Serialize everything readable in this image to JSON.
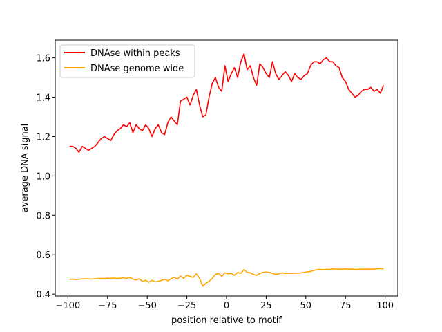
{
  "chart_data": {
    "type": "line",
    "xlabel": "position relative to motif",
    "ylabel": "average DNA signal",
    "xlim": [
      -108,
      108
    ],
    "ylim": [
      0.39,
      1.69
    ],
    "xticks": [
      -100,
      -75,
      -50,
      -25,
      0,
      25,
      50,
      75,
      100
    ],
    "yticks": [
      0.4,
      0.6,
      0.8,
      1.0,
      1.2,
      1.4,
      1.6
    ],
    "xtick_labels": [
      "−100",
      "−75",
      "−50",
      "−25",
      "0",
      "25",
      "50",
      "75",
      "100"
    ],
    "ytick_labels": [
      "0.4",
      "0.6",
      "0.8",
      "1.0",
      "1.2",
      "1.4",
      "1.6"
    ],
    "grid": false,
    "legend_position": "top-left",
    "series": [
      {
        "name": "DNAse within peaks",
        "color": "#ff0000",
        "x": [
          -99,
          -97,
          -95,
          -93,
          -91,
          -89,
          -87,
          -85,
          -83,
          -81,
          -79,
          -77,
          -75,
          -73,
          -71,
          -69,
          -67,
          -65,
          -63,
          -61,
          -59,
          -57,
          -55,
          -53,
          -51,
          -49,
          -47,
          -45,
          -43,
          -41,
          -39,
          -37,
          -35,
          -33,
          -31,
          -29,
          -27,
          -25,
          -23,
          -21,
          -19,
          -17,
          -15,
          -13,
          -11,
          -9,
          -7,
          -5,
          -3,
          -1,
          1,
          3,
          5,
          7,
          9,
          11,
          13,
          15,
          17,
          19,
          21,
          23,
          25,
          27,
          29,
          31,
          33,
          35,
          37,
          39,
          41,
          43,
          45,
          47,
          49,
          51,
          53,
          55,
          57,
          59,
          61,
          63,
          65,
          67,
          69,
          71,
          73,
          75,
          77,
          79,
          81,
          83,
          85,
          87,
          89,
          91,
          93,
          95,
          97,
          99
        ],
        "values": [
          1.15,
          1.15,
          1.14,
          1.12,
          1.15,
          1.14,
          1.13,
          1.14,
          1.15,
          1.17,
          1.19,
          1.2,
          1.19,
          1.18,
          1.21,
          1.23,
          1.24,
          1.26,
          1.25,
          1.27,
          1.22,
          1.26,
          1.24,
          1.23,
          1.26,
          1.24,
          1.2,
          1.24,
          1.26,
          1.22,
          1.21,
          1.27,
          1.3,
          1.28,
          1.26,
          1.38,
          1.39,
          1.4,
          1.36,
          1.41,
          1.44,
          1.36,
          1.3,
          1.31,
          1.4,
          1.47,
          1.5,
          1.45,
          1.43,
          1.56,
          1.48,
          1.52,
          1.55,
          1.5,
          1.58,
          1.62,
          1.54,
          1.56,
          1.5,
          1.46,
          1.57,
          1.55,
          1.52,
          1.5,
          1.58,
          1.52,
          1.49,
          1.51,
          1.53,
          1.51,
          1.48,
          1.52,
          1.5,
          1.49,
          1.51,
          1.52,
          1.56,
          1.58,
          1.58,
          1.57,
          1.59,
          1.6,
          1.58,
          1.58,
          1.56,
          1.55,
          1.5,
          1.48,
          1.44,
          1.42,
          1.4,
          1.41,
          1.43,
          1.44,
          1.44,
          1.45,
          1.43,
          1.44,
          1.42,
          1.46
        ]
      },
      {
        "name": "DNAse genome wide",
        "color": "#ffa500",
        "x": [
          -99,
          -97,
          -95,
          -93,
          -91,
          -89,
          -87,
          -85,
          -83,
          -81,
          -79,
          -77,
          -75,
          -73,
          -71,
          -69,
          -67,
          -65,
          -63,
          -61,
          -59,
          -57,
          -55,
          -53,
          -51,
          -49,
          -47,
          -45,
          -43,
          -41,
          -39,
          -37,
          -35,
          -33,
          -31,
          -29,
          -27,
          -25,
          -23,
          -21,
          -19,
          -17,
          -15,
          -13,
          -11,
          -9,
          -7,
          -5,
          -3,
          -1,
          1,
          3,
          5,
          7,
          9,
          11,
          13,
          15,
          17,
          19,
          21,
          23,
          25,
          27,
          29,
          31,
          33,
          35,
          37,
          39,
          41,
          43,
          45,
          47,
          49,
          51,
          53,
          55,
          57,
          59,
          61,
          63,
          65,
          67,
          69,
          71,
          73,
          75,
          77,
          79,
          81,
          83,
          85,
          87,
          89,
          91,
          93,
          95,
          97,
          99
        ],
        "values": [
          0.475,
          0.476,
          0.474,
          0.475,
          0.477,
          0.478,
          0.477,
          0.476,
          0.478,
          0.479,
          0.48,
          0.479,
          0.481,
          0.48,
          0.482,
          0.479,
          0.481,
          0.483,
          0.48,
          0.485,
          0.476,
          0.472,
          0.478,
          0.465,
          0.47,
          0.46,
          0.47,
          0.462,
          0.465,
          0.47,
          0.475,
          0.468,
          0.478,
          0.486,
          0.476,
          0.492,
          0.48,
          0.496,
          0.49,
          0.485,
          0.503,
          0.48,
          0.44,
          0.455,
          0.465,
          0.48,
          0.5,
          0.505,
          0.49,
          0.508,
          0.503,
          0.505,
          0.495,
          0.51,
          0.505,
          0.525,
          0.51,
          0.508,
          0.5,
          0.495,
          0.505,
          0.51,
          0.512,
          0.51,
          0.505,
          0.5,
          0.503,
          0.508,
          0.505,
          0.506,
          0.505,
          0.507,
          0.506,
          0.508,
          0.51,
          0.513,
          0.515,
          0.52,
          0.524,
          0.525,
          0.523,
          0.526,
          0.525,
          0.528,
          0.527,
          0.526,
          0.527,
          0.528,
          0.526,
          0.527,
          0.525,
          0.526,
          0.527,
          0.526,
          0.527,
          0.526,
          0.527,
          0.528,
          0.53,
          0.528
        ]
      }
    ]
  }
}
